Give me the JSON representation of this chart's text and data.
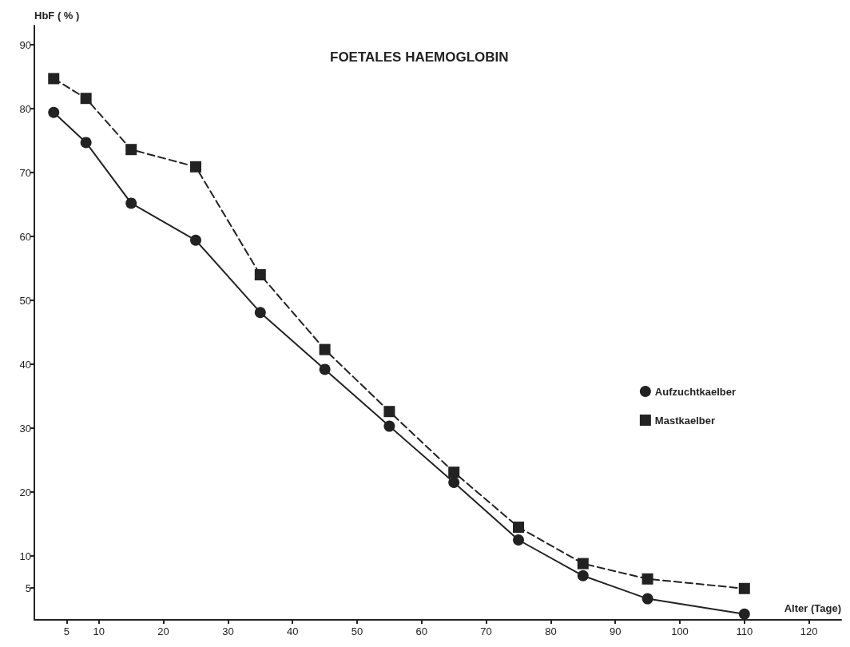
{
  "chart_data": {
    "type": "line",
    "title": "FOETALES HAEMOGLOBIN",
    "xlabel": "Alter (Tage)",
    "ylabel": "HbF ( % )",
    "x": [
      3,
      8,
      15,
      25,
      35,
      45,
      55,
      65,
      75,
      85,
      95,
      110
    ],
    "series": [
      {
        "name": "Aufzuchtkaelber",
        "color": "#222222",
        "marker": "circle",
        "line_style": "solid",
        "values": [
          79.4,
          74.7,
          65.2,
          59.4,
          48.1,
          39.2,
          30.3,
          21.5,
          12.5,
          6.9,
          3.3,
          0.9
        ]
      },
      {
        "name": "Mastkaelber",
        "color": "#222222",
        "marker": "square",
        "line_style": "dashed",
        "values": [
          84.7,
          81.6,
          73.6,
          70.9,
          54.0,
          42.3,
          32.6,
          23.1,
          14.5,
          8.8,
          6.4,
          4.9
        ]
      }
    ],
    "xlim": [
      0,
      125
    ],
    "xticks": [
      5,
      10,
      20,
      30,
      40,
      50,
      60,
      70,
      80,
      90,
      100,
      110,
      120
    ],
    "ylim": [
      0,
      93
    ],
    "yticks": [
      5,
      10,
      20,
      30,
      40,
      50,
      60,
      70,
      80,
      90
    ],
    "grid": false,
    "legend": "right"
  }
}
